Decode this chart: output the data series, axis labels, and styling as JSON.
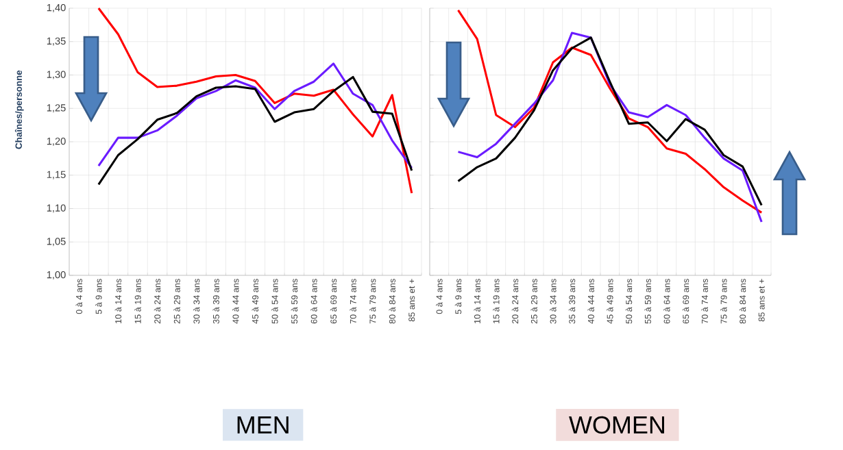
{
  "chart_data": [
    {
      "type": "line",
      "xlabel": "MEN",
      "ylabel": "Chaînes/personne",
      "marker": "none",
      "grid": true,
      "categories": [
        "0 à 4 ans",
        "5 à 9 ans",
        "10 à 14 ans",
        "15 à 19 ans",
        "20 à 24 ans",
        "25 à 29 ans",
        "30 à 34 ans",
        "35 à 39 ans",
        "40 à 44 ans",
        "45 à 49 ans",
        "50 à 54 ans",
        "55 à 59 ans",
        "60 à 64 ans",
        "65 à 69 ans",
        "70 à 74 ans",
        "75 à 79 ans",
        "80 à 84 ans",
        "85 ans et +"
      ],
      "series": [
        {
          "color": "#ff0000",
          "values": [
            null,
            1.4,
            1.361,
            1.304,
            1.282,
            1.284,
            1.29,
            1.298,
            1.3,
            1.291,
            1.258,
            1.272,
            1.269,
            1.278,
            1.241,
            1.208,
            1.27,
            1.123
          ]
        },
        {
          "color": "#6a1bff",
          "values": [
            null,
            1.164,
            1.206,
            1.206,
            1.217,
            1.239,
            1.265,
            1.276,
            1.292,
            1.281,
            1.249,
            1.276,
            1.29,
            1.317,
            1.272,
            1.255,
            1.202,
            1.161
          ]
        },
        {
          "color": "#000000",
          "values": [
            null,
            1.136,
            1.18,
            1.204,
            1.233,
            1.243,
            1.268,
            1.281,
            1.283,
            1.279,
            1.23,
            1.244,
            1.249,
            1.276,
            1.297,
            1.245,
            1.242,
            1.157
          ]
        }
      ],
      "ylim": [
        1.0,
        1.4
      ],
      "yticks": [
        {
          "value": 1.0,
          "label": "1,00"
        },
        {
          "value": 1.05,
          "label": "1,05"
        },
        {
          "value": 1.1,
          "label": "1,10"
        },
        {
          "value": 1.15,
          "label": "1,15"
        },
        {
          "value": 1.2,
          "label": "1,20"
        },
        {
          "value": 1.25,
          "label": "1,25"
        },
        {
          "value": 1.3,
          "label": "1,30"
        },
        {
          "value": 1.35,
          "label": "1,35"
        },
        {
          "value": 1.4,
          "label": "1,40"
        }
      ]
    },
    {
      "type": "line",
      "xlabel": "WOMEN",
      "marker": "none",
      "grid": true,
      "tick_labels": "x",
      "categories": [
        "0 à 4 ans",
        "5 à 9 ans",
        "10 à 14 ans",
        "15 à 19 ans",
        "20 à 24 ans",
        "25 à 29 ans",
        "30 à 34 ans",
        "35 à 39 ans",
        "40 à 44 ans",
        "45 à 49 ans",
        "50 à 54 ans",
        "55 à 59 ans",
        "60 à 64 ans",
        "65 à 69 ans",
        "70 à 74 ans",
        "75 à 79 ans",
        "80 à 84 ans",
        "85 ans et +"
      ],
      "series": [
        {
          "color": "#ff0000",
          "values": [
            null,
            1.397,
            1.354,
            1.24,
            1.222,
            1.251,
            1.319,
            1.341,
            1.33,
            1.28,
            1.235,
            1.222,
            1.19,
            1.182,
            1.159,
            1.132,
            1.112,
            1.094
          ]
        },
        {
          "color": "#6a1bff",
          "values": [
            null,
            1.185,
            1.177,
            1.197,
            1.227,
            1.257,
            1.292,
            1.363,
            1.356,
            1.286,
            1.244,
            1.237,
            1.255,
            1.24,
            1.206,
            1.175,
            1.157,
            1.08
          ]
        },
        {
          "color": "#000000",
          "values": [
            null,
            1.141,
            1.162,
            1.175,
            1.206,
            1.247,
            1.307,
            1.34,
            1.356,
            1.29,
            1.227,
            1.229,
            1.201,
            1.234,
            1.218,
            1.18,
            1.163,
            1.105
          ]
        }
      ],
      "ylim": [
        1.0,
        1.4
      ],
      "yticks": [
        {
          "value": 1.0,
          "label": null
        },
        {
          "value": 1.05,
          "label": null
        },
        {
          "value": 1.1,
          "label": null
        },
        {
          "value": 1.15,
          "label": null
        },
        {
          "value": 1.2,
          "label": null
        },
        {
          "value": 1.25,
          "label": null
        },
        {
          "value": 1.3,
          "label": null
        },
        {
          "value": 1.35,
          "label": null
        },
        {
          "value": 1.4,
          "label": null
        }
      ]
    }
  ]
}
